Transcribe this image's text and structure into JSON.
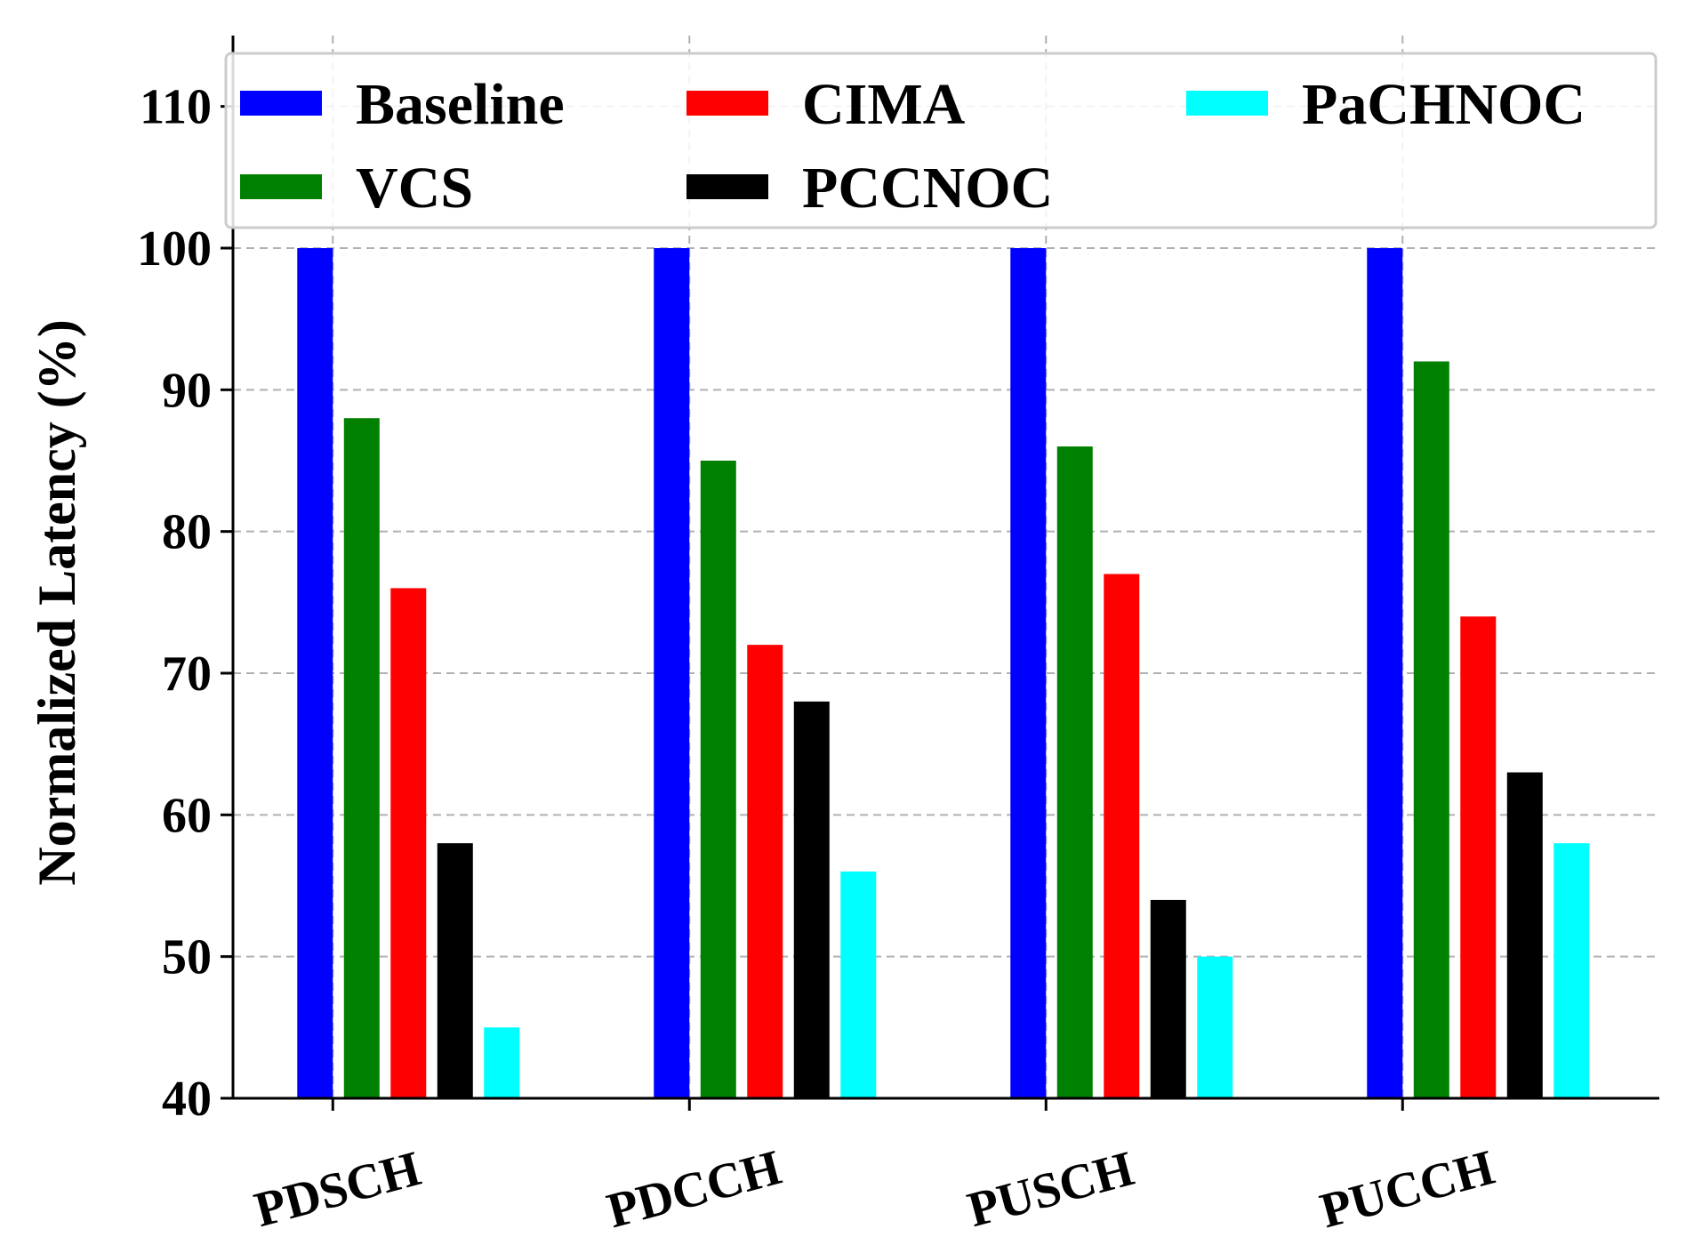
{
  "chart_data": {
    "type": "bar",
    "title": "",
    "xlabel": "",
    "ylabel": "Normalized Latency (%)",
    "ylim": [
      40,
      115
    ],
    "yticks": [
      40,
      50,
      60,
      70,
      80,
      90,
      100,
      110
    ],
    "grid": true,
    "legend_position": "top",
    "categories": [
      "PDSCH",
      "PDCCH",
      "PUSCH",
      "PUCCH"
    ],
    "series": [
      {
        "name": "Baseline",
        "color": "#0000ff",
        "values": [
          100,
          100,
          100,
          100
        ]
      },
      {
        "name": "VCS",
        "color": "#008000",
        "values": [
          88,
          85,
          86,
          92
        ]
      },
      {
        "name": "CIMA",
        "color": "#ff0000",
        "values": [
          76,
          72,
          77,
          74
        ]
      },
      {
        "name": "PCCNOC",
        "color": "#000000",
        "values": [
          58,
          68,
          54,
          63
        ]
      },
      {
        "name": "PaCHNOC",
        "color": "#00ffff",
        "values": [
          45,
          56,
          50,
          58
        ]
      }
    ]
  }
}
